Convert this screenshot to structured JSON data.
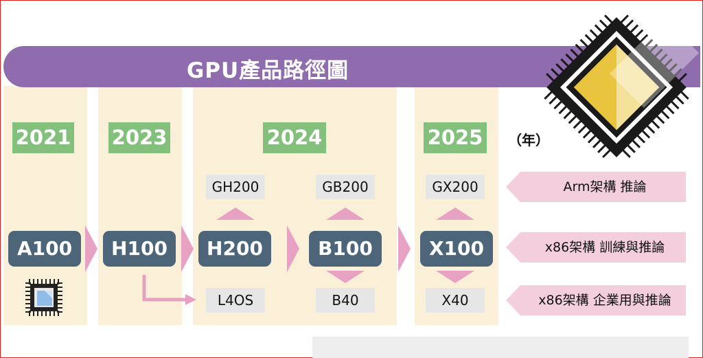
{
  "title": "GPU產品路徑圖",
  "year_unit": "（年）",
  "years": [
    "2021",
    "2023",
    "2024",
    "2025"
  ],
  "chips": {
    "main": [
      "A100",
      "H100",
      "H200",
      "B100",
      "X100"
    ],
    "arm": [
      "GH200",
      "GB200",
      "GX200"
    ],
    "enterprise": [
      "L4OS",
      "B40",
      "X40"
    ]
  },
  "row_labels": [
    "Arm架構  推論",
    "x86架構  訓練與推論",
    "x86架構  企業用與推論"
  ],
  "colors": {
    "title_band": "#8e6cad",
    "year_badge": "#82c07c",
    "chip_box": "#4d6579",
    "variant_box": "#e6e6e6",
    "arrow": "#e7a1c2",
    "row_label": "#f3cfde",
    "column_bg": "#faf0d8",
    "big_chip_die": "#e9c53f"
  },
  "icons": [
    "gpu-chip-icon",
    "processor-chip-icon"
  ]
}
